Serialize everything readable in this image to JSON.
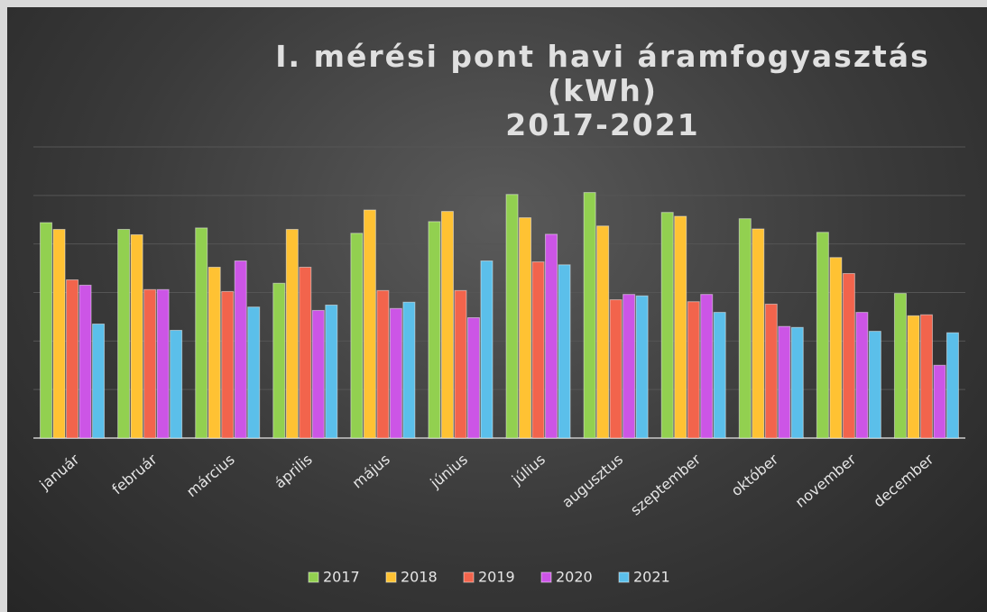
{
  "chart_data": {
    "type": "bar",
    "title": "I. mérési pont havi áramfogyasztás (kWh)\n2017-2021",
    "categories": [
      "január",
      "február",
      "március",
      "április",
      "május",
      "június",
      "július",
      "augusztus",
      "szeptember",
      "október",
      "november",
      "december"
    ],
    "series": [
      {
        "name": "2017",
        "color": "#92d050",
        "values": [
          4.44,
          4.3,
          4.33,
          3.19,
          4.22,
          4.46,
          5.02,
          5.06,
          4.65,
          4.52,
          4.24,
          2.98
        ]
      },
      {
        "name": "2018",
        "color": "#ffc233",
        "values": [
          4.3,
          4.19,
          3.52,
          4.3,
          4.7,
          4.67,
          4.54,
          4.37,
          4.57,
          4.31,
          3.72,
          2.52
        ]
      },
      {
        "name": "2019",
        "color": "#f2644c",
        "values": [
          3.26,
          3.06,
          3.02,
          3.52,
          3.04,
          3.04,
          3.63,
          2.85,
          2.81,
          2.76,
          3.39,
          2.54
        ]
      },
      {
        "name": "2020",
        "color": "#cc55e6",
        "values": [
          3.15,
          3.06,
          3.65,
          2.63,
          2.67,
          2.48,
          4.2,
          2.96,
          2.96,
          2.3,
          2.59,
          1.5
        ]
      },
      {
        "name": "2021",
        "color": "#5bbfea",
        "values": [
          2.35,
          2.22,
          2.7,
          2.74,
          2.8,
          3.65,
          3.57,
          2.93,
          2.59,
          2.28,
          2.2,
          2.17
        ]
      }
    ],
    "ylim": [
      0,
      6
    ],
    "yticks": [
      0,
      1,
      2,
      3,
      4,
      5,
      6
    ],
    "grid": true,
    "legend": "bottom"
  }
}
